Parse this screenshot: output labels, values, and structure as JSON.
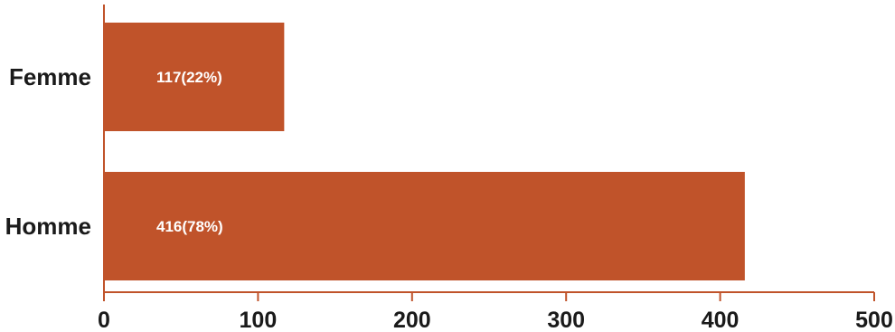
{
  "chart_data": {
    "type": "bar",
    "orientation": "horizontal",
    "categories": [
      "Femme",
      "Homme"
    ],
    "values": [
      117,
      416
    ],
    "data_labels": [
      "117(22%)",
      "416(78%)"
    ],
    "xlim": [
      0,
      500
    ],
    "xticks": [
      "0",
      "100",
      "200",
      "300",
      "400",
      "500"
    ],
    "grid": false,
    "legend": "none",
    "title": "",
    "xlabel": "",
    "ylabel": ""
  },
  "colors": {
    "bar": "#c0532a",
    "axis": "#c0532a",
    "text": "#1a1a1a",
    "bar_label": "#ffffff"
  }
}
